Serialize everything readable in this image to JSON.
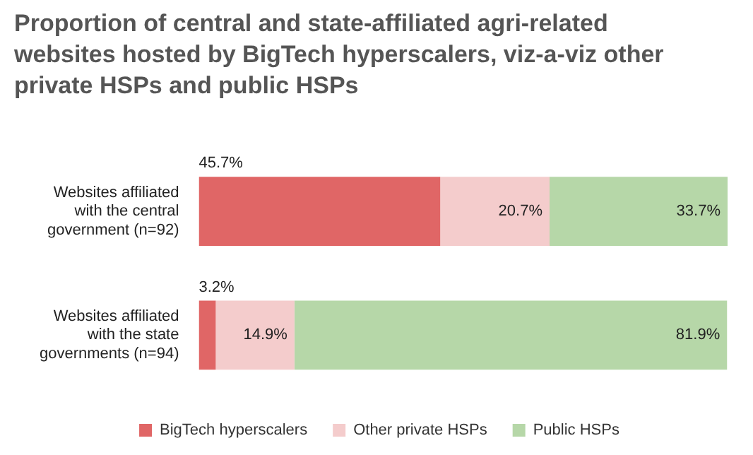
{
  "chart_data": {
    "type": "bar",
    "orientation": "horizontal",
    "stacked": true,
    "title": "Proportion of central and state-affiliated agri-related websites hosted by BigTech hyperscalers, viz-a-viz other private HSPs and public HSPs",
    "categories": [
      "Websites affiliated with the central government (n=92)",
      "Websites affiliated with the state governments (n=94)"
    ],
    "series": [
      {
        "name": "BigTech hyperscalers",
        "color": "#e06666",
        "values": [
          45.7,
          3.2
        ],
        "value_labels": [
          "45.7%",
          "3.2%"
        ]
      },
      {
        "name": "Other private HSPs",
        "color": "#f4cccc",
        "values": [
          20.7,
          14.9
        ],
        "value_labels": [
          "20.7%",
          "14.9%"
        ]
      },
      {
        "name": "Public HSPs",
        "color": "#b6d7a8",
        "values": [
          33.7,
          81.9
        ],
        "value_labels": [
          "33.7%",
          "81.9%"
        ]
      }
    ],
    "legend": "bottom",
    "grid": false
  }
}
